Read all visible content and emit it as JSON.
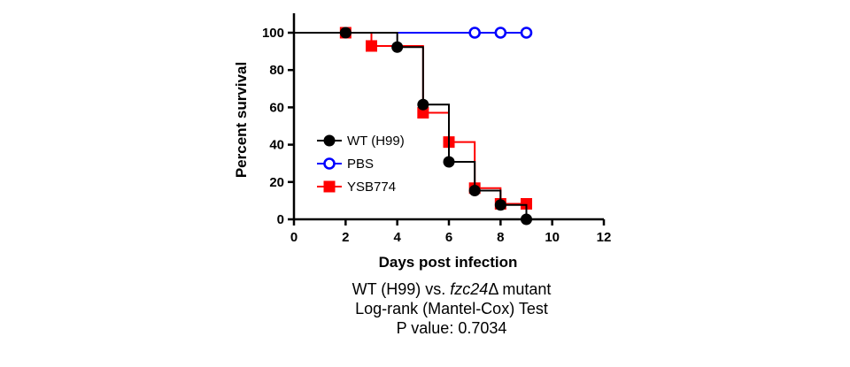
{
  "chart_data": {
    "type": "line",
    "xlabel": "Days post infection",
    "ylabel": "Percent survival",
    "xlim": [
      0,
      12
    ],
    "ylim": [
      0,
      100
    ],
    "xticks": [
      0,
      2,
      4,
      6,
      8,
      10,
      12
    ],
    "yticks": [
      0,
      20,
      40,
      60,
      80,
      100
    ],
    "grid": false,
    "legend_position": "left",
    "series": [
      {
        "name": "WT (H99)",
        "color": "#000000",
        "marker": "filled-circle",
        "steps": [
          [
            0,
            100
          ],
          [
            4,
            92.3
          ],
          [
            5,
            61.5
          ],
          [
            6,
            30.8
          ],
          [
            7,
            15.4
          ],
          [
            8,
            7.7
          ],
          [
            9,
            0
          ]
        ],
        "points": [
          [
            2,
            100
          ],
          [
            4,
            92.3
          ],
          [
            5,
            61.5
          ],
          [
            6,
            30.8
          ],
          [
            7,
            15.4
          ],
          [
            8,
            7.7
          ],
          [
            9,
            0
          ]
        ]
      },
      {
        "name": "PBS",
        "color": "#0000ff",
        "marker": "open-circle",
        "steps": [
          [
            0,
            100
          ],
          [
            9,
            100
          ]
        ],
        "points": [
          [
            7,
            100
          ],
          [
            8,
            100
          ],
          [
            9,
            100
          ]
        ]
      },
      {
        "name": "YSB774",
        "color": "#ff0000",
        "marker": "filled-square",
        "steps": [
          [
            0,
            100
          ],
          [
            3,
            92.9
          ],
          [
            5,
            57.1
          ],
          [
            6,
            41.4
          ],
          [
            7,
            16.7
          ],
          [
            8,
            8.3
          ],
          [
            9,
            8.3
          ]
        ],
        "points": [
          [
            2,
            100
          ],
          [
            3,
            92.9
          ],
          [
            5,
            57.1
          ],
          [
            6,
            41.4
          ],
          [
            7,
            16.7
          ],
          [
            8,
            8.3
          ],
          [
            9,
            8.3
          ]
        ]
      }
    ]
  },
  "caption": {
    "line1_prefix": "WT (H99) vs. ",
    "line1_gene": "fzc24",
    "line1_suffix": "Δ mutant",
    "line2": "Log-rank (Mantel-Cox) Test",
    "line3": "P value: 0.7034"
  }
}
